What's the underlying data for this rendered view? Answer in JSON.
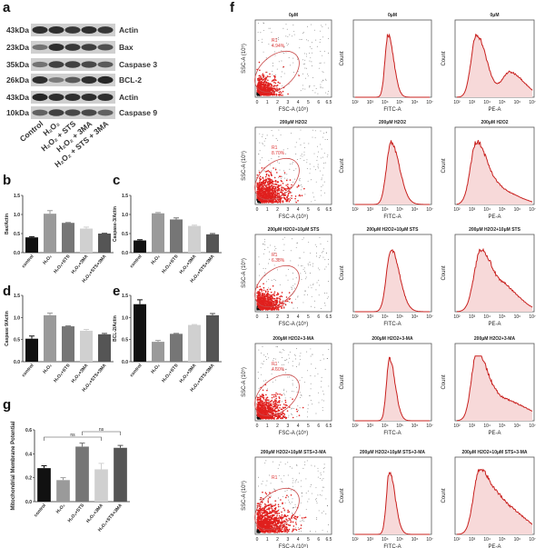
{
  "panel_letters": {
    "a": "a",
    "b": "b",
    "c": "c",
    "d": "d",
    "e": "e",
    "f": "f",
    "g": "g"
  },
  "groups": [
    "control",
    "H₂O₂",
    "H₂O₂+STS",
    "H₂O₂+3MA",
    "H₂O₂+STS+3MA"
  ],
  "bar_colors": [
    "#111111",
    "#9a9a9a",
    "#767676",
    "#d0d0d0",
    "#555555"
  ],
  "western_blot": {
    "lane_labels": [
      "Control",
      "H₂O₂",
      "H₂O₂ + STS",
      "H₂O₂ + 3MA",
      "H₂O₂ + STS + 3MA"
    ],
    "rows": [
      {
        "size": "43kDa",
        "protein": "Actin",
        "band_intensity": [
          0.9,
          0.9,
          0.85,
          0.9,
          0.85
        ]
      },
      {
        "size": "23kDa",
        "protein": "Bax",
        "band_intensity": [
          0.5,
          0.9,
          0.85,
          0.8,
          0.7
        ]
      },
      {
        "size": "35kDa",
        "protein": "Caspase 3",
        "band_intensity": [
          0.5,
          0.8,
          0.8,
          0.75,
          0.65
        ]
      },
      {
        "size": "26kDa",
        "protein": "BCL-2",
        "band_intensity": [
          0.9,
          0.45,
          0.65,
          0.9,
          0.95
        ]
      },
      {
        "size": "43kDa",
        "protein": "Actin",
        "band_intensity": [
          0.95,
          0.9,
          0.9,
          0.9,
          0.9
        ]
      },
      {
        "size": "10kDa",
        "protein": "Caspase 9",
        "band_intensity": [
          0.6,
          0.8,
          0.75,
          0.75,
          0.6
        ]
      }
    ]
  },
  "chart_data": [
    {
      "id": "b",
      "type": "bar",
      "ylabel": "Bax/Actin",
      "categories": [
        "control",
        "H₂O₂",
        "H₂O₂+STS",
        "H₂O₂+3MA",
        "H₂O₂+STS+3MA"
      ],
      "values": [
        0.4,
        1.02,
        0.78,
        0.63,
        0.5
      ],
      "errors": [
        0.02,
        0.08,
        0.01,
        0.04,
        0.01
      ],
      "ylim": [
        0,
        1.5
      ],
      "yticks": [
        "0.0",
        "0.5",
        "1.0",
        "1.5"
      ]
    },
    {
      "id": "c",
      "type": "bar",
      "ylabel": "Caspase-3/Actin",
      "categories": [
        "control",
        "H₂O₂",
        "H₂O₂+STS",
        "H₂O₂+3MA",
        "H₂O₂+STS+3MA"
      ],
      "values": [
        0.32,
        1.03,
        0.87,
        0.7,
        0.48
      ],
      "errors": [
        0.02,
        0.02,
        0.04,
        0.02,
        0.02
      ],
      "ylim": [
        0,
        1.5
      ],
      "yticks": [
        "0.0",
        "0.5",
        "1.0",
        "1.5"
      ]
    },
    {
      "id": "d",
      "type": "bar",
      "ylabel": "Caspase 9/Actin",
      "categories": [
        "control",
        "H₂O₂",
        "H₂O₂+STS",
        "H₂O₂+3MA",
        "H₂O₂+STS+3MA"
      ],
      "values": [
        0.52,
        1.05,
        0.8,
        0.7,
        0.62
      ],
      "errors": [
        0.06,
        0.05,
        0.01,
        0.03,
        0.02
      ],
      "ylim": [
        0,
        1.5
      ],
      "yticks": [
        "0.0",
        "0.5",
        "1.0",
        "1.5"
      ]
    },
    {
      "id": "e",
      "type": "bar",
      "ylabel": "BCL-2/Actin",
      "categories": [
        "control",
        "H₂O₂",
        "H₂O₂+STS",
        "H₂O₂+3MA",
        "H₂O₂+STS+3MA"
      ],
      "values": [
        1.3,
        0.45,
        0.63,
        0.83,
        1.05
      ],
      "errors": [
        0.1,
        0.03,
        0.01,
        0.01,
        0.04
      ],
      "ylim": [
        0,
        1.5
      ],
      "yticks": [
        "0.0",
        "0.5",
        "1.0",
        "1.5"
      ]
    },
    {
      "id": "g",
      "type": "bar",
      "ylabel": "Mitochondrial Membrane Potential",
      "categories": [
        "control",
        "H₂O₂",
        "H₂O₂+STS",
        "H₂O₂+3MA",
        "H₂O₂+STS+3MA"
      ],
      "values": [
        0.28,
        0.18,
        0.46,
        0.27,
        0.45
      ],
      "errors": [
        0.02,
        0.02,
        0.03,
        0.05,
        0.02
      ],
      "ylim": [
        0,
        0.6
      ],
      "yticks": [
        "0.0",
        "0.2",
        "0.4",
        "0.6"
      ],
      "annotations": [
        {
          "from": 0,
          "to": 3,
          "label": "ns"
        },
        {
          "from": 2,
          "to": 4,
          "label": "ns"
        }
      ]
    }
  ],
  "flow": {
    "scatter_xlabel": "FSC-A (10⁵)",
    "scatter_ylabel": "SSC-A (10⁵)",
    "scatter_xticks": [
      "0",
      "1",
      "2",
      "3",
      "4",
      "5",
      "6",
      "6.5"
    ],
    "hist1_xlabel": "FITC-A",
    "hist2_xlabel": "PE-A",
    "hist_ylabel": "Count",
    "hist_xticks": [
      "10²",
      "10³",
      "10⁴",
      "10⁵",
      "10⁶",
      "10⁷"
    ],
    "gate_name": "R1",
    "rows": [
      {
        "title": "0μM",
        "gate_pct": "4.94%"
      },
      {
        "title": "200μM H2O2",
        "gate_pct": "8.70%"
      },
      {
        "title": "200μM H2O2+10μM STS",
        "gate_pct": "6.38%"
      },
      {
        "title": "200μM H2O2+3-MA",
        "gate_pct": "4.60%"
      },
      {
        "title": "200μM H2O2+10μM STS+3-MA",
        "gate_pct": ""
      }
    ]
  }
}
